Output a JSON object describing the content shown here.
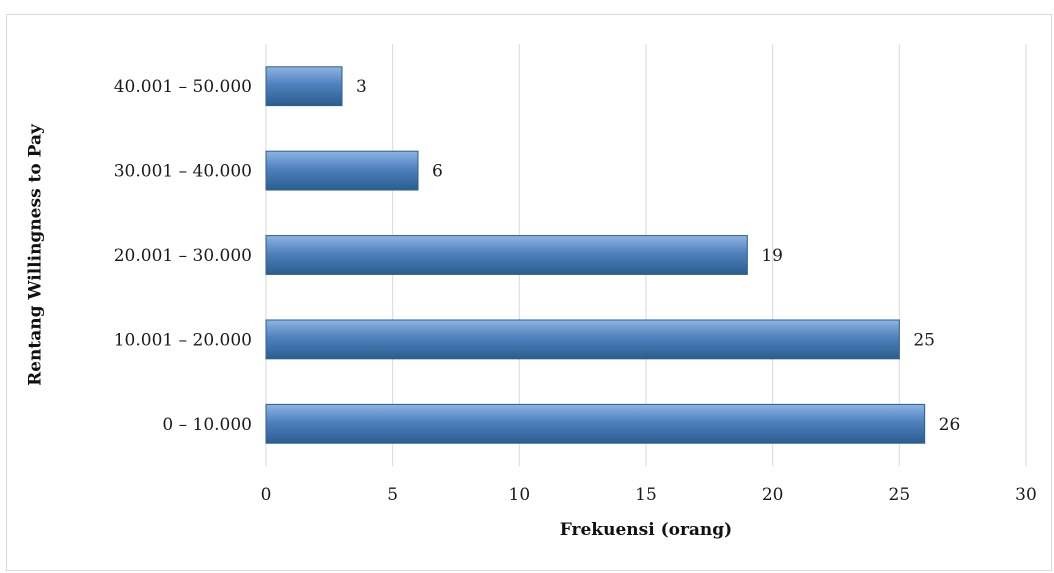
{
  "chart_data": {
    "type": "bar",
    "orientation": "horizontal",
    "categories": [
      "0 – 10.000",
      "10.001 – 20.000",
      "20.001 – 30.000",
      "30.001 – 40.000",
      "40.001 – 50.000"
    ],
    "values": [
      26,
      25,
      19,
      6,
      3
    ],
    "data_labels": [
      "26",
      "25",
      "19",
      "6",
      "3"
    ],
    "xlabel": "Frekuensi (orang)",
    "ylabel": "Rentang Willingness to Pay",
    "xlim": [
      0,
      30
    ],
    "xticks": [
      0,
      5,
      10,
      15,
      20,
      25,
      30
    ],
    "xtick_labels": [
      "0",
      "5",
      "10",
      "15",
      "20",
      "25",
      "30"
    ],
    "grid": "vertical",
    "legend": "none",
    "bar_color": "#4f81bd",
    "bar_highlight": "#8eb4e3",
    "bar_shadow": "#2c5d8f",
    "grid_color": "#d9d9d9"
  }
}
